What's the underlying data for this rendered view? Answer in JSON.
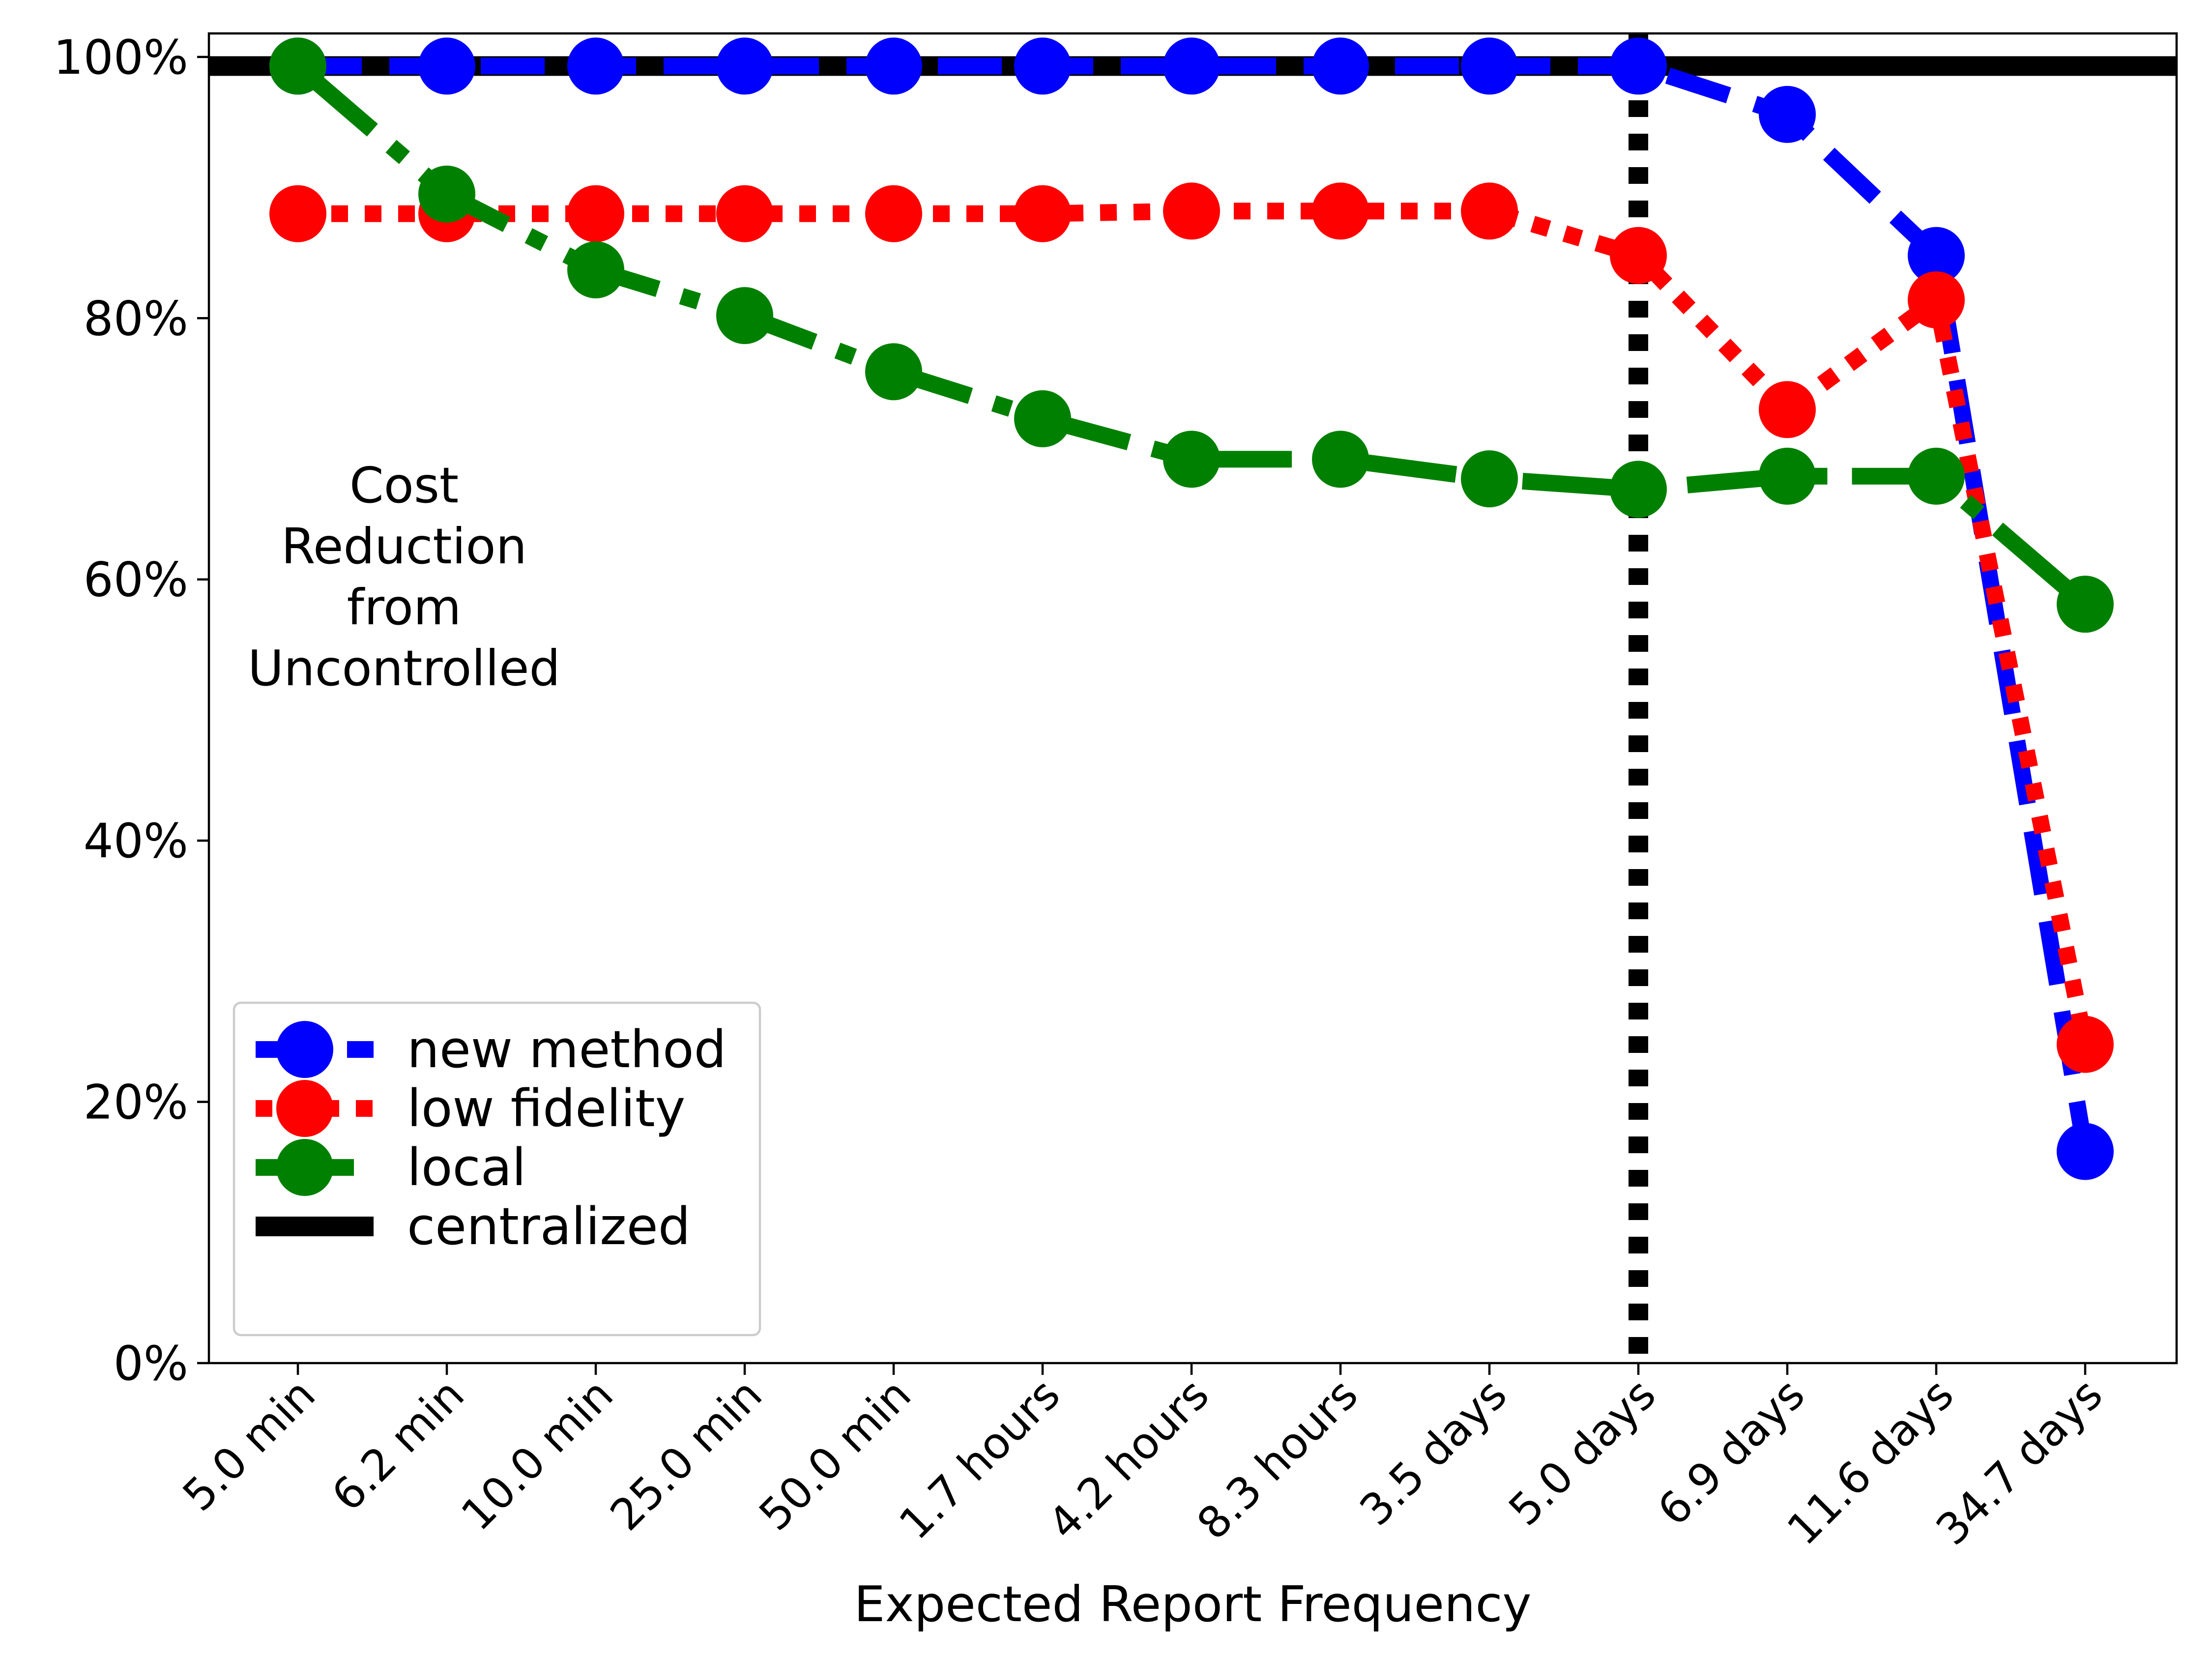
{
  "chart_data": {
    "type": "line",
    "title": "",
    "xlabel": "Expected Report Frequency",
    "ylabel": "",
    "annotation": "Cost\nReduction\nfrom\nUncontrolled",
    "categories": [
      "5.0 min",
      "6.2 min",
      "10.0 min",
      "25.0 min",
      "50.0 min",
      "1.7 hours",
      "4.2 hours",
      "8.3 hours",
      "3.5 days",
      "5.0 days",
      "6.9 days",
      "11.6 days",
      "34.7 days"
    ],
    "ylim": [
      0,
      101.8
    ],
    "yticks": [
      0,
      20,
      40,
      60,
      80,
      100
    ],
    "ytick_labels": [
      "0%",
      "20%",
      "40%",
      "60%",
      "80%",
      "100%"
    ],
    "grid": false,
    "legend_position": "lower-left",
    "series": [
      {
        "name": "new method",
        "color": "#0000ff",
        "dash": "dashed",
        "values": [
          99.3,
          99.3,
          99.3,
          99.3,
          99.3,
          99.3,
          99.3,
          99.3,
          99.3,
          99.3,
          95.6,
          84.8,
          16.2
        ]
      },
      {
        "name": "low fidelity",
        "color": "#ff0000",
        "dash": "dotted",
        "values": [
          88.0,
          88.0,
          88.0,
          88.0,
          88.0,
          88.0,
          88.2,
          88.2,
          88.2,
          84.8,
          73.0,
          81.4,
          24.4
        ]
      },
      {
        "name": "local",
        "color": "#008000",
        "dash": "dashdot",
        "values": [
          99.3,
          89.5,
          83.7,
          80.2,
          75.9,
          72.3,
          69.2,
          69.2,
          67.7,
          66.9,
          67.9,
          67.9,
          58.1
        ]
      }
    ],
    "reference_lines": [
      {
        "name": "centralized",
        "orientation": "horizontal",
        "value": 99.3,
        "color": "#000000",
        "dash": "solid"
      },
      {
        "name": "",
        "orientation": "vertical",
        "category": "5.0 days",
        "color": "#000000",
        "dash": "dotted"
      }
    ]
  }
}
